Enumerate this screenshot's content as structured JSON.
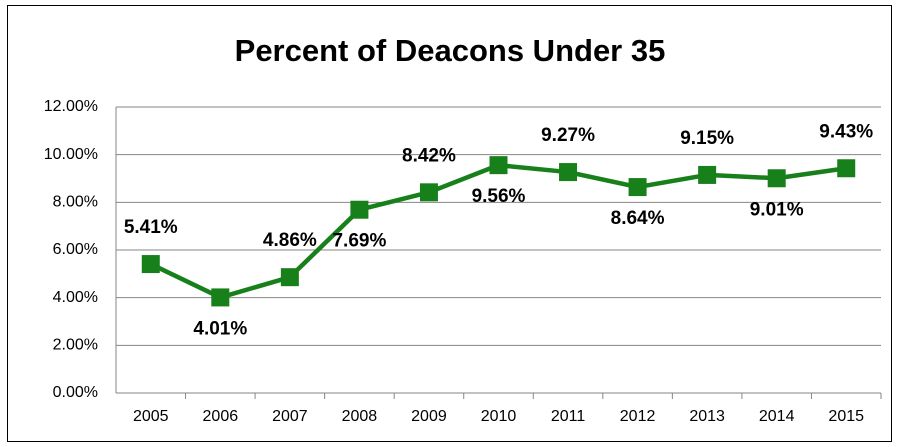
{
  "chart_data": {
    "type": "line",
    "title": "Percent of Deacons Under 35",
    "categories": [
      "2005",
      "2006",
      "2007",
      "2008",
      "2009",
      "2010",
      "2011",
      "2012",
      "2013",
      "2014",
      "2015"
    ],
    "series": [
      {
        "name": "Percent of Deacons Under 35",
        "color": "#17801a",
        "values": [
          5.41,
          4.01,
          4.86,
          7.69,
          8.42,
          9.56,
          9.27,
          8.64,
          9.15,
          9.01,
          9.43
        ],
        "value_labels": [
          "5.41%",
          "4.01%",
          "4.86%",
          "7.69%",
          "8.42%",
          "9.56%",
          "9.27%",
          "8.64%",
          "9.15%",
          "9.01%",
          "9.43%"
        ]
      }
    ],
    "ylim": [
      0,
      12
    ],
    "yticks": [
      {
        "value": 0,
        "label": "0.00%"
      },
      {
        "value": 2,
        "label": "2.00%"
      },
      {
        "value": 4,
        "label": "4.00%"
      },
      {
        "value": 6,
        "label": "6.00%"
      },
      {
        "value": 8,
        "label": "8.00%"
      },
      {
        "value": 10,
        "label": "10.00%"
      },
      {
        "value": 12,
        "label": "12.00%"
      }
    ],
    "grid": true
  }
}
